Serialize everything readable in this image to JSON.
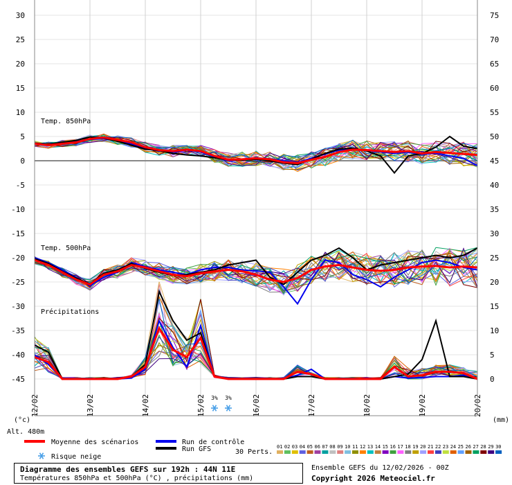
{
  "chart_data": {
    "type": "line",
    "title": "Diagramme des ensembles GEFS sur 192h : 44N 11E",
    "subtitle": "Températures 850hPa et 500hPa (°C) , précipitations (mm)",
    "left_axis": {
      "unit": "(°c)",
      "range": [
        -45,
        30
      ],
      "ticks": [
        30,
        25,
        20,
        15,
        10,
        5,
        0,
        -5,
        -10,
        -15,
        -20,
        -25,
        -30,
        -35,
        -40,
        -45
      ]
    },
    "right_axis": {
      "unit": "(mm)",
      "range": [
        0,
        75
      ],
      "ticks": [
        75,
        70,
        65,
        60,
        55,
        50,
        45,
        40,
        35,
        30,
        25,
        20,
        15,
        10,
        5,
        0
      ]
    },
    "x_axis": {
      "ticks": [
        "12/02",
        "13/02",
        "14/02",
        "15/02",
        "16/02",
        "17/02",
        "18/02",
        "19/02",
        "20/02"
      ],
      "step_hours": 6,
      "steps": 32
    },
    "altitude": "Alt. 480m",
    "panel_labels": {
      "t850": "Temp. 850hPa",
      "t500": "Temp. 500hPa",
      "precip": "Précipitations"
    },
    "snow_risk": [
      {
        "step": 13,
        "pct": "3%"
      },
      {
        "step": 14,
        "pct": "3%"
      }
    ],
    "series": [
      {
        "name": "Moyenne des scénarios",
        "color": "#ff0000",
        "t850": [
          3.5,
          3.2,
          3.5,
          3.8,
          4.5,
          4.8,
          4.3,
          3.8,
          2.8,
          2.2,
          2.0,
          2.3,
          2.0,
          1.0,
          0.2,
          0.3,
          0.5,
          0.3,
          -0.3,
          -0.5,
          0.2,
          0.8,
          1.8,
          2.3,
          2.2,
          2.0,
          1.8,
          2.0,
          1.5,
          1.8,
          1.6,
          1.4,
          1.2
        ],
        "t500": [
          -20.5,
          -21.5,
          -23.0,
          -24.5,
          -25.5,
          -23.5,
          -22.8,
          -21.5,
          -22.0,
          -22.8,
          -23.5,
          -23.8,
          -23.2,
          -22.8,
          -22.5,
          -22.8,
          -23.5,
          -24.5,
          -25.0,
          -24.2,
          -22.5,
          -21.8,
          -21.5,
          -22.0,
          -22.5,
          -22.7,
          -22.5,
          -22.0,
          -21.8,
          -21.7,
          -22.0,
          -21.8,
          -22.0
        ],
        "precip": [
          4.5,
          3.5,
          0,
          0,
          0,
          0,
          0,
          0.5,
          2.5,
          10.5,
          6.0,
          4.5,
          8.5,
          0.5,
          0,
          0,
          0,
          0,
          0,
          1.5,
          1.0,
          0,
          0,
          0,
          0,
          0,
          2.5,
          0.5,
          0.8,
          1.5,
          1.5,
          1.2,
          0
        ]
      },
      {
        "name": "Run de contrôle",
        "color": "#0000ee",
        "t850": [
          3.5,
          3.3,
          3.6,
          4.0,
          4.4,
          4.6,
          4.1,
          3.5,
          2.5,
          2.0,
          1.8,
          2.2,
          1.8,
          0.8,
          0.0,
          0.2,
          0.6,
          0.4,
          0.0,
          -0.4,
          0.5,
          1.4,
          2.2,
          2.5,
          2.1,
          1.8,
          1.5,
          1.8,
          1.3,
          1.6,
          1.0,
          0.5,
          -1.0
        ],
        "t500": [
          -20.0,
          -21.0,
          -22.5,
          -24.0,
          -25.8,
          -24.0,
          -23.0,
          -21.0,
          -21.8,
          -22.5,
          -23.0,
          -23.5,
          -22.5,
          -22.0,
          -22.0,
          -22.5,
          -22.7,
          -23.0,
          -26.0,
          -29.5,
          -24.5,
          -20.5,
          -21.0,
          -23.5,
          -24.5,
          -26.0,
          -24.0,
          -22.5,
          -21.0,
          -20.5,
          -21.0,
          -22.0,
          -22.5
        ],
        "precip": [
          5.0,
          3.0,
          0,
          0,
          0,
          0,
          0,
          0.2,
          2.0,
          12.0,
          6.5,
          2.5,
          11.0,
          0.5,
          0,
          0,
          0,
          0,
          0,
          0.8,
          2.0,
          0,
          0,
          0,
          0,
          0,
          0.5,
          0.2,
          0.3,
          0.5,
          0.5,
          0.8,
          0
        ]
      },
      {
        "name": "Run GFS",
        "color": "#000000",
        "t850": [
          3.6,
          3.4,
          3.8,
          4.2,
          4.9,
          4.7,
          4.0,
          3.2,
          2.4,
          2.1,
          1.5,
          1.2,
          1.0,
          0.6,
          0.2,
          0.1,
          0.3,
          0.0,
          -0.5,
          -0.8,
          0.3,
          1.5,
          2.4,
          2.6,
          2.0,
          1.0,
          -2.5,
          1.0,
          1.5,
          2.8,
          5.0,
          3.0,
          2.5
        ],
        "t500": [
          -20.2,
          -21.2,
          -22.8,
          -24.2,
          -25.4,
          -23.2,
          -22.5,
          -21.2,
          -22.2,
          -23.0,
          -23.6,
          -23.5,
          -23.0,
          -22.5,
          -21.5,
          -21.0,
          -20.5,
          -24.0,
          -25.5,
          -23.0,
          -20.5,
          -19.5,
          -18.0,
          -20.0,
          -22.5,
          -21.5,
          -21.0,
          -20.5,
          -20.0,
          -19.5,
          -20.0,
          -19.5,
          -18.0
        ],
        "precip": [
          7.0,
          5.5,
          0,
          0,
          0,
          0,
          0,
          0.5,
          3.0,
          18.0,
          12.0,
          8.0,
          9.5,
          0.5,
          0,
          0,
          0,
          0,
          0,
          0.5,
          0.5,
          0,
          0,
          0,
          0,
          0,
          0.5,
          1.0,
          4.0,
          12.0,
          0.5,
          0.5,
          0
        ]
      }
    ]
  },
  "legend": {
    "mean_label": "Moyenne des scénarios",
    "control_label": "Run de contrôle",
    "gfs_label": "Run GFS",
    "snow_label": "Risque neige",
    "perts_label": "30 Perts.",
    "pert_numbers": [
      "01",
      "02",
      "03",
      "04",
      "05",
      "06",
      "07",
      "08",
      "09",
      "10",
      "11",
      "12",
      "13",
      "14",
      "15",
      "16",
      "17",
      "18",
      "19",
      "20",
      "21",
      "22",
      "23",
      "24",
      "25",
      "26",
      "27",
      "28",
      "29",
      "30"
    ],
    "pert_colors": [
      "#e0b060",
      "#60c060",
      "#e0c000",
      "#6060e0",
      "#c06020",
      "#a040a0",
      "#00a0a0",
      "#c0c0c0",
      "#e08080",
      "#80c0e0",
      "#909000",
      "#ff8000",
      "#00c0c0",
      "#c08040",
      "#8000c0",
      "#40a040",
      "#ff60ff",
      "#808080",
      "#c0a000",
      "#a0a0ff",
      "#ff4040",
      "#4040c0",
      "#c0e040",
      "#e06000",
      "#60a0ff",
      "#a06000",
      "#00a060",
      "#800000",
      "#400080",
      "#0060c0"
    ]
  },
  "footer": {
    "title": "Diagramme des ensembles GEFS sur 192h : 44N 11E",
    "subtitle": "Températures 850hPa et 500hPa (°C) , précipitations (mm)",
    "run": "Ensemble GEFS du 12/02/2026 - 00Z",
    "copyright": "Copyright 2026 Meteociel.fr"
  }
}
